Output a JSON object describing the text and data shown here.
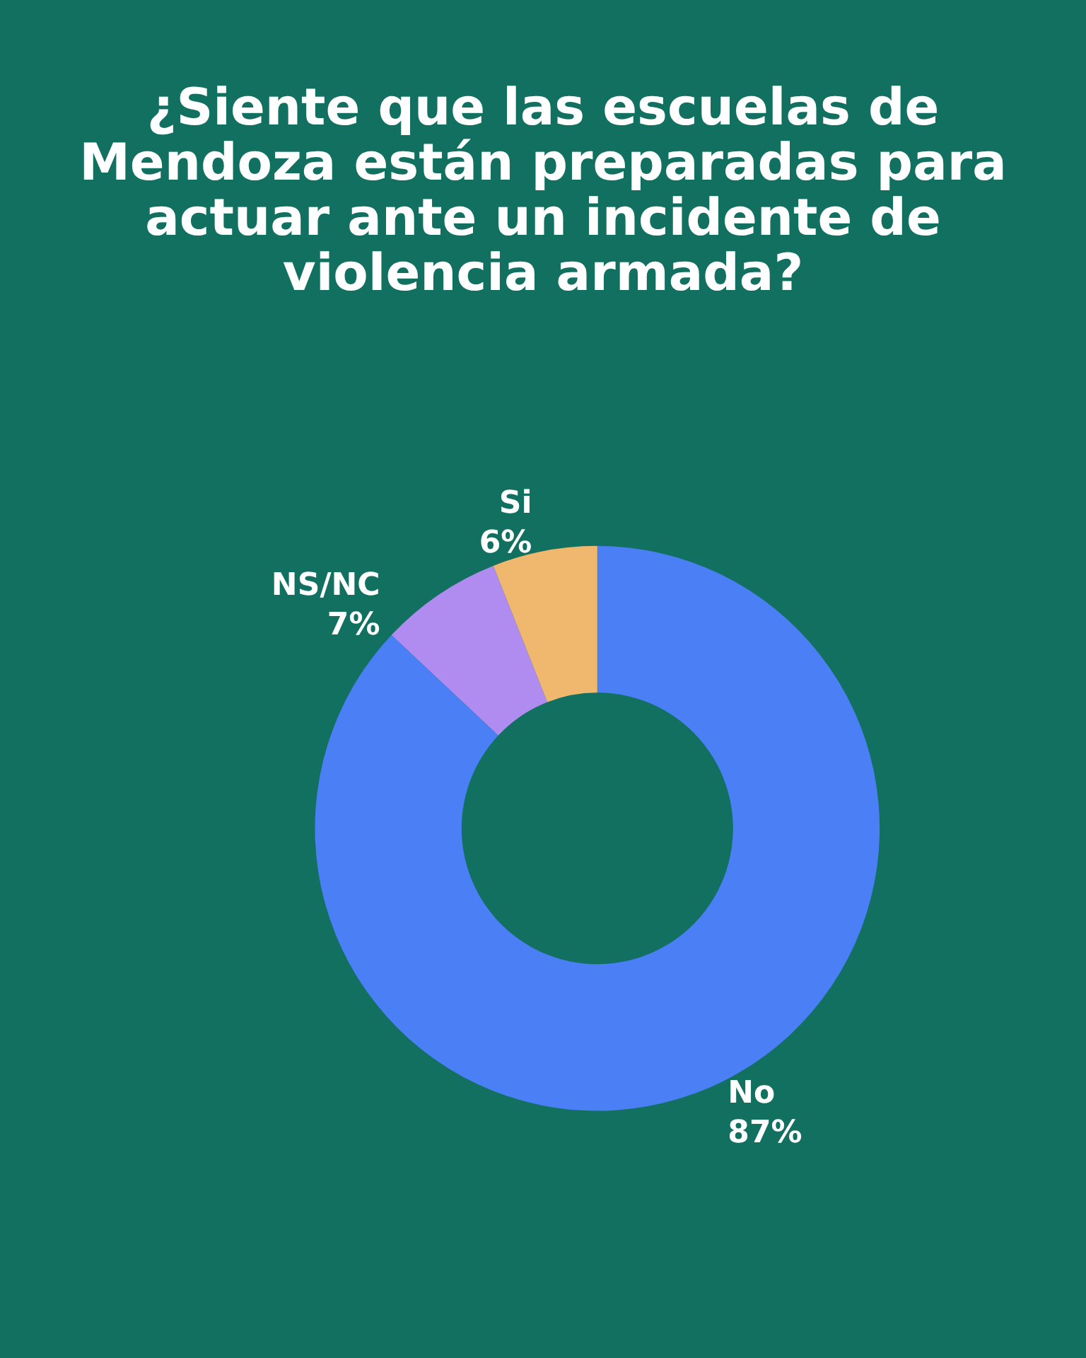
{
  "chart_data": {
    "type": "donut",
    "title": "¿Siente que las escuelas de Mendoza están preparadas para actuar ante un incidente de violencia armada?",
    "categories": [
      "No",
      "NS/NC",
      "Si"
    ],
    "values": [
      87,
      7,
      6
    ],
    "value_labels": [
      "87%",
      "7%",
      "6%"
    ],
    "colors": [
      "#4a7ff5",
      "#b08cf0",
      "#f0b86e"
    ],
    "legend": false
  }
}
